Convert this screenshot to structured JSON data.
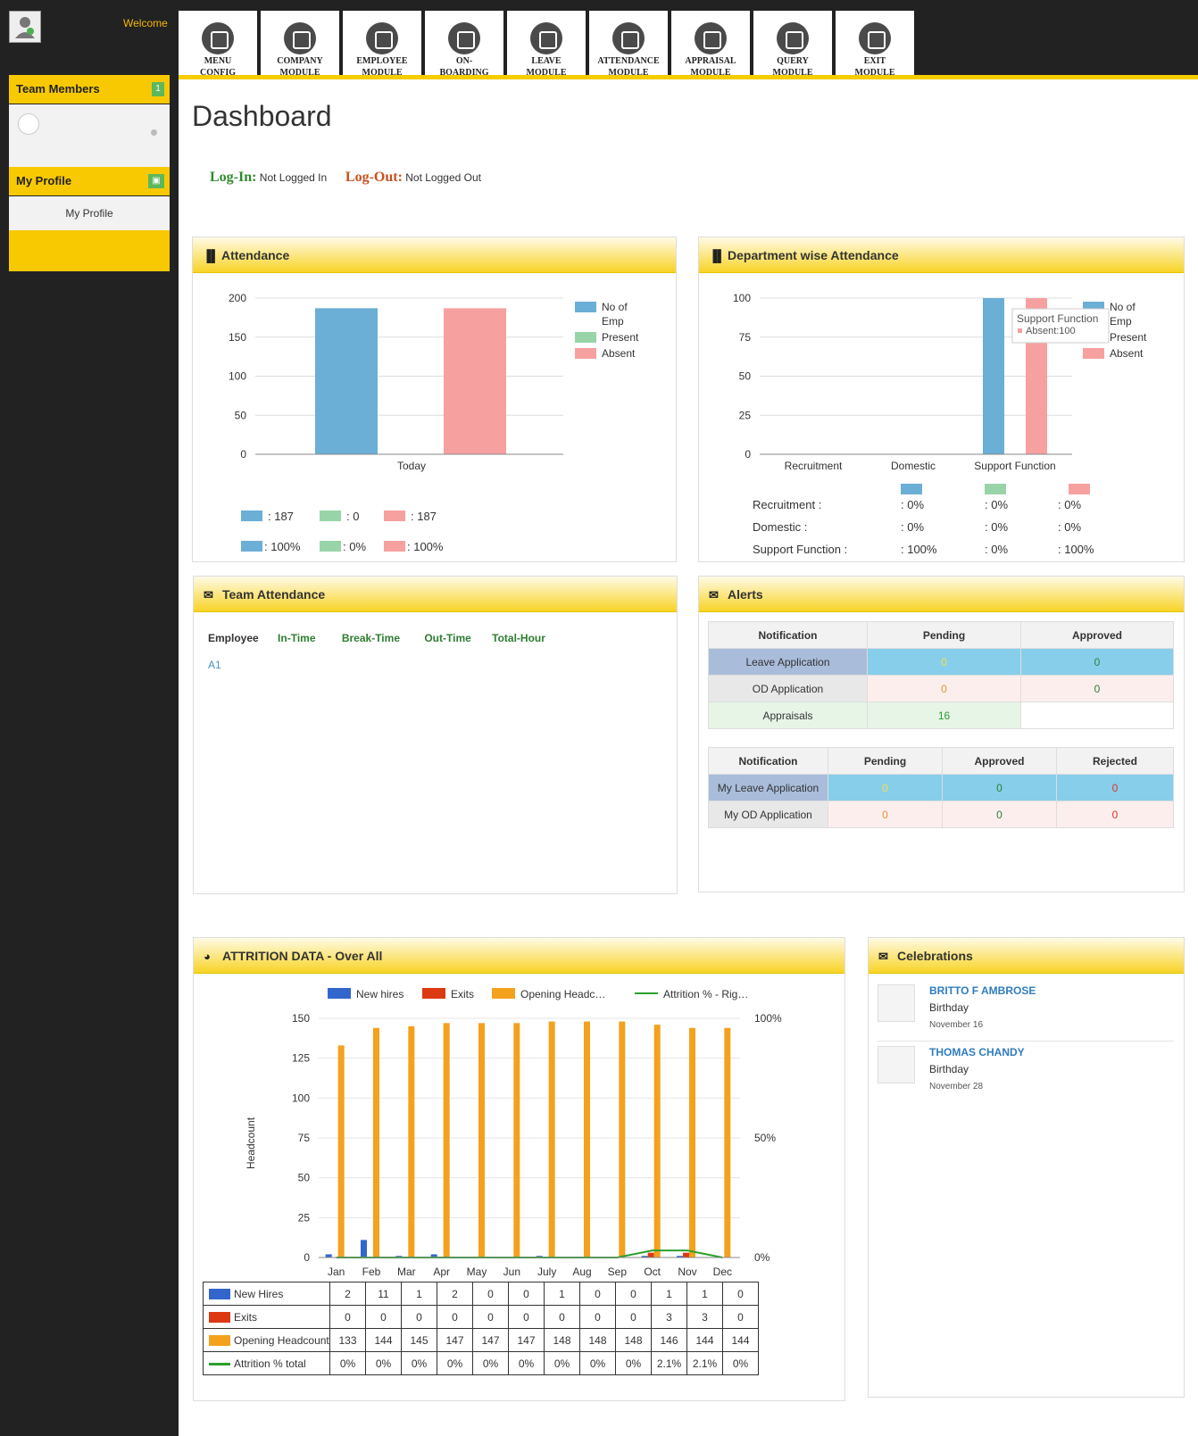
{
  "header": {
    "welcome": "Welcome",
    "avatar_text": "No Image"
  },
  "modules": [
    {
      "label_1": "MENU",
      "label_2": "CONFIG"
    },
    {
      "label_1": "COMPANY",
      "label_2": "MODULE"
    },
    {
      "label_1": "EMPLOYEE",
      "label_2": "MODULE"
    },
    {
      "label_1": "ON-",
      "label_2": "BOARDING"
    },
    {
      "label_1": "LEAVE",
      "label_2": "MODULE"
    },
    {
      "label_1": "ATTENDANCE",
      "label_2": "MODULE"
    },
    {
      "label_1": "APPRAISAL",
      "label_2": "MODULE"
    },
    {
      "label_1": "QUERY",
      "label_2": "MODULE"
    },
    {
      "label_1": "EXIT",
      "label_2": "MODULE"
    }
  ],
  "sidebar": {
    "team_members": "Team Members",
    "team_count": "1",
    "my_profile_header": "My Profile",
    "my_profile_link": "My Profile"
  },
  "page": {
    "title": "Dashboard",
    "login_label": "Log-In:",
    "login_value": "Not Logged In",
    "logout_label": "Log-Out:",
    "logout_value": "Not Logged Out"
  },
  "attendance": {
    "title": "Attendance",
    "legend": [
      "No of",
      "Emp",
      "Present",
      "Absent"
    ],
    "summary_counts": [
      ": 187",
      ": 0",
      ": 187"
    ],
    "summary_pcts": [
      ": 100%",
      ": 0%",
      ": 100%"
    ],
    "colors": {
      "emp": "#6baed6",
      "present": "#98d4a8",
      "absent": "#f7a0a0"
    }
  },
  "dept": {
    "title": "Department wise Attendance",
    "legend": [
      "No of",
      "Emp",
      "Present",
      "Absent"
    ],
    "tooltip_title": "Support Function",
    "tooltip_value": "Absent:100",
    "rows": [
      {
        "name": "Recruitment :",
        "emp": ": 0%",
        "present": ": 0%",
        "absent": ": 0%"
      },
      {
        "name": "Domestic :",
        "emp": ": 0%",
        "present": ": 0%",
        "absent": ": 0%"
      },
      {
        "name": "Support Function :",
        "emp": ": 100%",
        "present": ": 0%",
        "absent": ": 100%"
      }
    ]
  },
  "team_attendance": {
    "title": "Team Attendance",
    "cols": [
      "Employee",
      "In-Time",
      "Break-Time",
      "Out-Time",
      "Total-Hour"
    ],
    "rows": [
      "A1"
    ]
  },
  "alerts": {
    "title": "Alerts",
    "t1_headers": [
      "Notification",
      "Pending",
      "Approved"
    ],
    "t1_rows": [
      [
        "Leave Application",
        "0",
        "0"
      ],
      [
        "OD Application",
        "0",
        "0"
      ],
      [
        "Appraisals",
        "16",
        ""
      ]
    ],
    "t2_headers": [
      "Notification",
      "Pending",
      "Approved",
      "Rejected"
    ],
    "t2_rows": [
      [
        "My Leave Application",
        "0",
        "0",
        "0"
      ],
      [
        "My OD Application",
        "0",
        "0",
        "0"
      ]
    ]
  },
  "attrition": {
    "title": "ATTRITION DATA - Over All",
    "legend": [
      "New hires",
      "Exits",
      "Opening Headc…",
      "Attrition % - Rig…"
    ],
    "ylabel": "Headcount",
    "rows": [
      {
        "label": "New Hires",
        "values": [
          "2",
          "11",
          "1",
          "2",
          "0",
          "0",
          "1",
          "0",
          "0",
          "1",
          "1",
          "0"
        ]
      },
      {
        "label": "Exits",
        "values": [
          "0",
          "0",
          "0",
          "0",
          "0",
          "0",
          "0",
          "0",
          "0",
          "3",
          "3",
          "0"
        ]
      },
      {
        "label": "Opening Headcount",
        "values": [
          "133",
          "144",
          "145",
          "147",
          "147",
          "147",
          "148",
          "148",
          "148",
          "146",
          "144",
          "144"
        ]
      },
      {
        "label": "Attrition % total",
        "values": [
          "0%",
          "0%",
          "0%",
          "0%",
          "0%",
          "0%",
          "0%",
          "0%",
          "0%",
          "2.1%",
          "2.1%",
          "0%"
        ]
      }
    ],
    "colors": {
      "hires": "#3366cc",
      "exits": "#dc3912",
      "headcount": "#f4a11d",
      "attrition": "#2ca02c"
    }
  },
  "celebrations": {
    "title": "Celebrations",
    "items": [
      {
        "name": "BRITTO F AMBROSE",
        "event": "Birthday",
        "date": "November 16"
      },
      {
        "name": "THOMAS CHANDY",
        "event": "Birthday",
        "date": "November 28"
      }
    ]
  },
  "chart_data": [
    {
      "type": "bar",
      "title": "Attendance",
      "categories": [
        "Today"
      ],
      "ylim": [
        0,
        200
      ],
      "series": [
        {
          "name": "No of Emp",
          "values": [
            187
          ]
        },
        {
          "name": "Present",
          "values": [
            0
          ]
        },
        {
          "name": "Absent",
          "values": [
            187
          ]
        }
      ]
    },
    {
      "type": "bar",
      "title": "Department wise Attendance",
      "categories": [
        "Recruitment",
        "Domestic",
        "Support Function"
      ],
      "ylim": [
        0,
        100
      ],
      "series": [
        {
          "name": "No of Emp",
          "values": [
            0,
            0,
            100
          ]
        },
        {
          "name": "Present",
          "values": [
            0,
            0,
            0
          ]
        },
        {
          "name": "Absent",
          "values": [
            0,
            0,
            100
          ]
        }
      ]
    },
    {
      "type": "bar",
      "title": "ATTRITION DATA - Over All",
      "ylabel": "Headcount",
      "categories": [
        "Jan",
        "Feb",
        "Mar",
        "Apr",
        "May",
        "Jun",
        "July",
        "Aug",
        "Sep",
        "Oct",
        "Nov",
        "Dec"
      ],
      "ylim": [
        0,
        150
      ],
      "y2lim": [
        "0%",
        "100%"
      ],
      "series": [
        {
          "name": "New hires",
          "values": [
            2,
            11,
            1,
            2,
            0,
            0,
            1,
            0,
            0,
            1,
            1,
            0
          ]
        },
        {
          "name": "Exits",
          "values": [
            0,
            0,
            0,
            0,
            0,
            0,
            0,
            0,
            0,
            3,
            3,
            0
          ]
        },
        {
          "name": "Opening Headcount",
          "values": [
            133,
            144,
            145,
            147,
            147,
            147,
            148,
            148,
            148,
            146,
            144,
            144
          ]
        },
        {
          "name": "Attrition %",
          "values": [
            0,
            0,
            0,
            0,
            0,
            0,
            0,
            0,
            0,
            2.1,
            2.1,
            0
          ]
        }
      ]
    }
  ]
}
